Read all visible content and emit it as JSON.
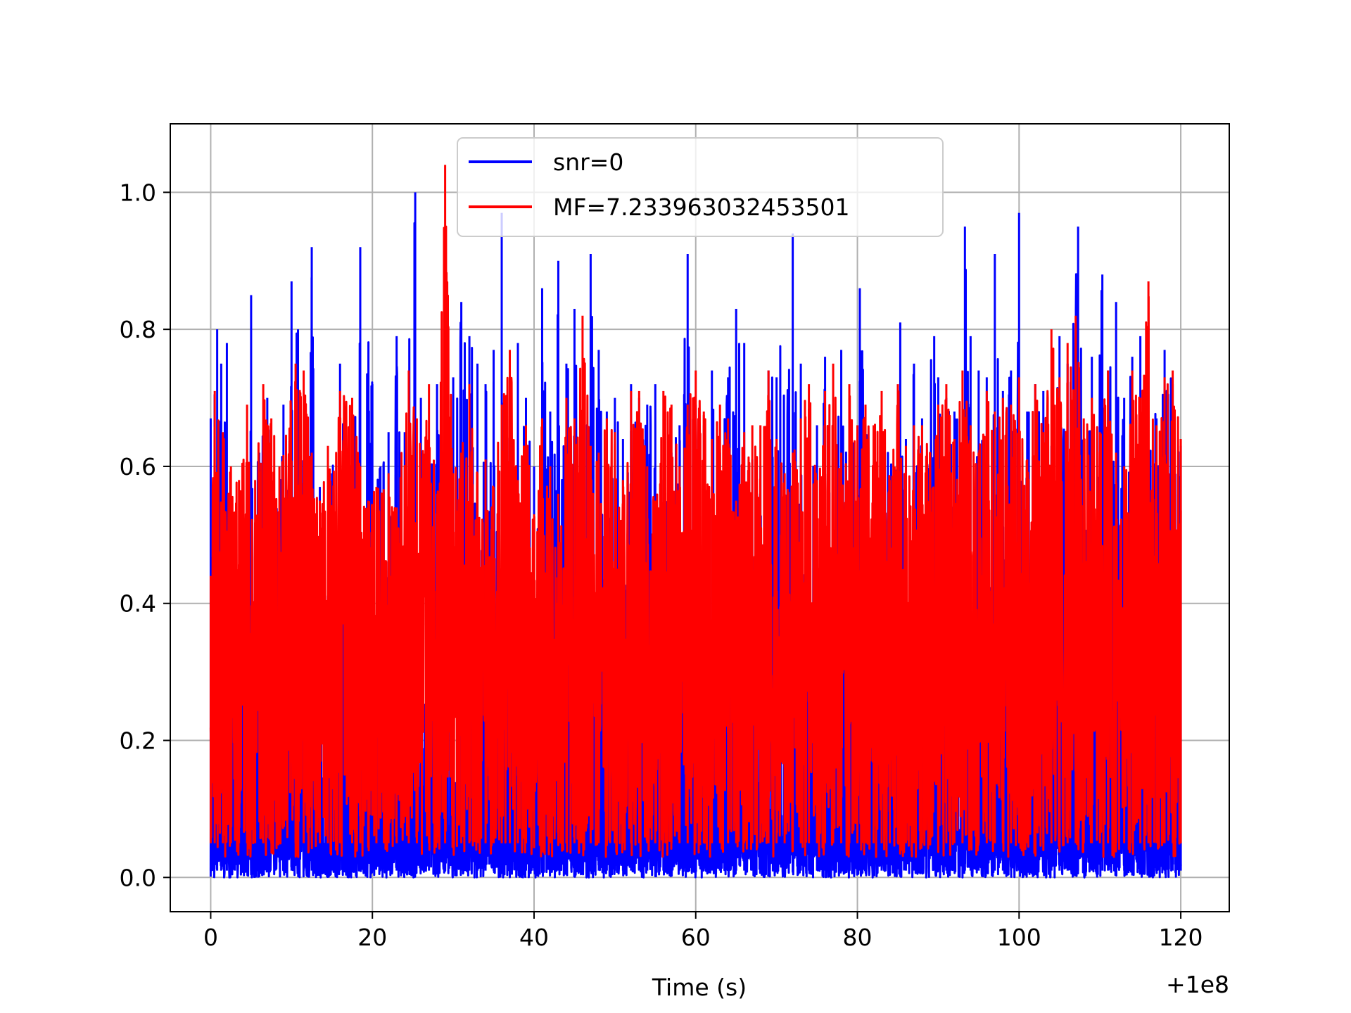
{
  "chart_data": {
    "type": "line",
    "title": "",
    "xlabel": "Time (s)",
    "ylabel": "",
    "x_offset_label": "+1e8",
    "xlim": [
      -5,
      126
    ],
    "ylim": [
      -0.05,
      1.1
    ],
    "xticks": [
      0,
      20,
      40,
      60,
      80,
      100,
      120
    ],
    "xtick_labels": [
      "0",
      "20",
      "40",
      "60",
      "80",
      "100",
      "120"
    ],
    "yticks": [
      0.0,
      0.2,
      0.4,
      0.6,
      0.8,
      1.0
    ],
    "ytick_labels": [
      "0.0",
      "0.2",
      "0.4",
      "0.6",
      "0.8",
      "1.0"
    ],
    "grid": true,
    "legend_position": "upper-center",
    "series": [
      {
        "name": "snr=0",
        "color": "#0000ff",
        "x": [
          0,
          0.8,
          1.3,
          2,
          3,
          4,
          5,
          6,
          7,
          8,
          9,
          10,
          10.8,
          11.5,
          12.5,
          13.5,
          15,
          16,
          17,
          18.5,
          20,
          21,
          22,
          23,
          24,
          25.3,
          26,
          27,
          28,
          29,
          30,
          31,
          32,
          33,
          34,
          35,
          36,
          37,
          38,
          39,
          40,
          41,
          42,
          43,
          44,
          45,
          46,
          47,
          48,
          49,
          50,
          51,
          52,
          53,
          54,
          55,
          56,
          57,
          58,
          59,
          60,
          61,
          62,
          63,
          64,
          65,
          66,
          67,
          68,
          69,
          70,
          72,
          73,
          74,
          75,
          76,
          77,
          78,
          79,
          80.3,
          81,
          82,
          83,
          85.3,
          86,
          87,
          88,
          89.5,
          90,
          91,
          92,
          93.3,
          94,
          95,
          96,
          97,
          98,
          99,
          100,
          101,
          102,
          103,
          104,
          105,
          106,
          107.3,
          108,
          109,
          110.3,
          111,
          112,
          113,
          114,
          115,
          116,
          117,
          118,
          119,
          120
        ],
        "y": [
          0.67,
          0.8,
          0.75,
          0.78,
          0.5,
          0.6,
          0.85,
          0.62,
          0.7,
          0.55,
          0.69,
          0.87,
          0.8,
          0.6,
          0.92,
          0.57,
          0.59,
          0.75,
          0.6,
          0.92,
          0.72,
          0.6,
          0.65,
          0.79,
          0.65,
          1.0,
          0.7,
          0.62,
          0.72,
          0.65,
          0.73,
          0.84,
          0.79,
          0.75,
          0.72,
          0.77,
          0.97,
          0.67,
          0.78,
          0.7,
          0.6,
          0.86,
          0.68,
          0.9,
          0.75,
          0.83,
          0.65,
          0.91,
          0.77,
          0.68,
          0.7,
          0.64,
          0.72,
          0.7,
          0.69,
          0.72,
          0.58,
          0.62,
          0.66,
          0.91,
          0.69,
          0.66,
          0.74,
          0.62,
          0.73,
          0.83,
          0.78,
          0.61,
          0.6,
          0.74,
          0.73,
          0.94,
          0.75,
          0.62,
          0.66,
          0.76,
          0.61,
          0.77,
          0.7,
          0.86,
          0.66,
          0.64,
          0.69,
          0.81,
          0.64,
          0.75,
          0.67,
          0.79,
          0.73,
          0.7,
          0.68,
          0.95,
          0.79,
          0.74,
          0.73,
          0.91,
          0.71,
          0.74,
          0.97,
          0.68,
          0.72,
          0.71,
          0.63,
          0.79,
          0.75,
          0.95,
          0.62,
          0.76,
          0.88,
          0.74,
          0.84,
          0.7,
          0.76,
          0.79,
          0.8,
          0.67,
          0.77,
          0.72,
          0.63
        ]
      },
      {
        "name": "MF=7.233963032453501",
        "color": "#ff0000",
        "x": [
          0,
          0.5,
          1.5,
          2.5,
          3.5,
          4.5,
          5.5,
          6.5,
          7.5,
          8.5,
          10.5,
          11.5,
          12.5,
          13.5,
          14.5,
          16,
          17.5,
          18.5,
          19.5,
          20.5,
          22,
          23,
          24.5,
          25.5,
          27,
          28,
          29,
          30,
          31,
          32,
          33,
          34,
          35,
          36,
          37,
          38,
          39,
          40,
          41,
          42,
          43,
          44,
          45,
          46,
          47,
          48,
          49,
          50,
          51,
          52,
          53,
          54,
          55,
          56,
          57,
          58,
          59,
          60,
          61,
          62,
          63,
          64,
          65,
          66,
          67,
          68,
          69,
          70,
          71,
          72,
          73,
          74,
          75,
          76,
          77,
          78,
          79,
          80,
          81,
          82,
          83,
          84,
          85,
          86,
          87,
          88,
          89,
          90,
          91,
          92,
          93,
          94,
          95,
          96,
          97,
          98,
          99,
          100,
          101,
          102,
          103,
          104,
          105,
          106,
          107,
          108,
          109,
          110,
          111,
          112,
          113,
          114,
          115,
          116,
          117,
          118,
          119,
          120
        ],
        "y": [
          0.44,
          0.71,
          0.65,
          0.6,
          0.58,
          0.69,
          0.58,
          0.72,
          0.67,
          0.6,
          0.75,
          0.74,
          0.62,
          0.55,
          0.63,
          0.71,
          0.7,
          0.6,
          0.55,
          0.57,
          0.59,
          0.54,
          0.74,
          0.67,
          0.72,
          0.56,
          1.04,
          0.59,
          0.62,
          0.72,
          0.59,
          0.61,
          0.57,
          0.69,
          0.77,
          0.58,
          0.66,
          0.53,
          0.67,
          0.6,
          0.56,
          0.7,
          0.67,
          0.82,
          0.63,
          0.62,
          0.67,
          0.65,
          0.58,
          0.71,
          0.71,
          0.6,
          0.55,
          0.71,
          0.69,
          0.6,
          0.69,
          0.74,
          0.68,
          0.64,
          0.69,
          0.67,
          0.55,
          0.65,
          0.66,
          0.66,
          0.74,
          0.64,
          0.59,
          0.62,
          0.67,
          0.72,
          0.58,
          0.71,
          0.75,
          0.62,
          0.72,
          0.66,
          0.69,
          0.66,
          0.71,
          0.58,
          0.72,
          0.63,
          0.66,
          0.66,
          0.62,
          0.69,
          0.72,
          0.64,
          0.74,
          0.66,
          0.62,
          0.71,
          0.68,
          0.7,
          0.69,
          0.73,
          0.61,
          0.72,
          0.65,
          0.8,
          0.73,
          0.78,
          0.82,
          0.67,
          0.7,
          0.65,
          0.74,
          0.62,
          0.6,
          0.74,
          0.7,
          0.87,
          0.66,
          0.73,
          0.74,
          0.64
        ]
      }
    ]
  }
}
